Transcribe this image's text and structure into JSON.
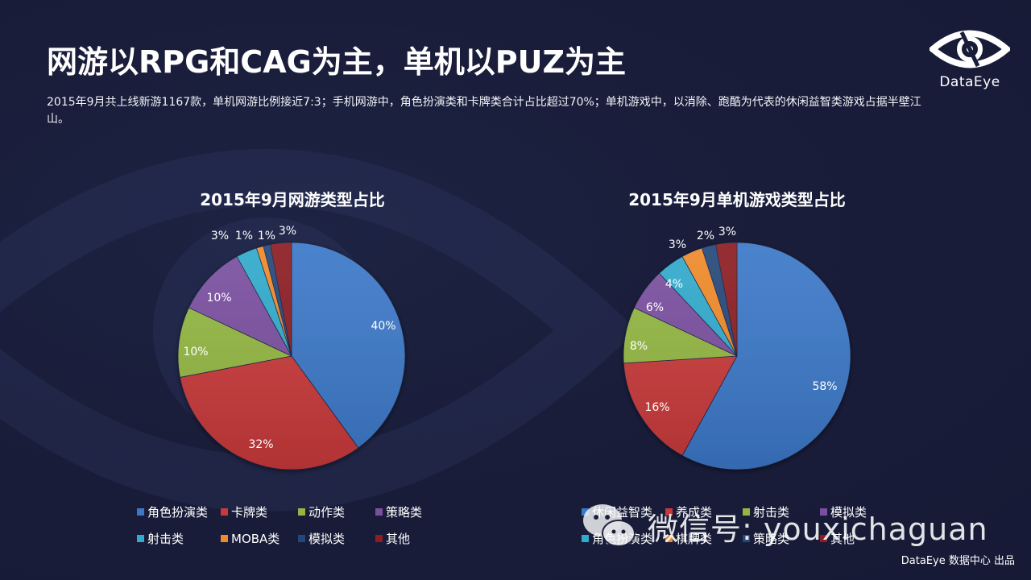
{
  "header": {
    "title": "网游以RPG和CAG为主，单机以PUZ为主",
    "subtitle": "2015年9月共上线新游1167款，单机网游比例接近7:3；手机网游中，角色扮演类和卡牌类合计占比超过70%；单机游戏中，以消除、跑酷为代表的休闲益智类游戏占据半壁江山。"
  },
  "logo": {
    "icon": "eye-logo-icon",
    "text": "DataEye"
  },
  "watermark": {
    "icon": "wechat-icon",
    "text": "微信号: youxichaguan"
  },
  "footer": {
    "text": "DataEye 数据中心 出品"
  },
  "chart_data": [
    {
      "type": "pie",
      "title": "2015年9月网游类型占比",
      "categories": [
        "角色扮演类",
        "卡牌类",
        "动作类",
        "策略类",
        "射击类",
        "MOBA类",
        "模拟类",
        "其他"
      ],
      "values": [
        40,
        32,
        10,
        10,
        3,
        1,
        1,
        3
      ],
      "labels": [
        "40%",
        "32%",
        "10%",
        "10%",
        "3%",
        "1%",
        "1%",
        "3%"
      ],
      "colors": [
        "#3b78c8",
        "#c9393a",
        "#93b742",
        "#7a4fa0",
        "#31aacc",
        "#ef8a2a",
        "#24477a",
        "#8c1d22"
      ],
      "start_angle": "12 o'clock, clockwise",
      "legend_position": "bottom"
    },
    {
      "type": "pie",
      "title": "2015年9月单机游戏类型占比",
      "categories": [
        "休闲益智类",
        "养成类",
        "射击类",
        "模拟类",
        "角色扮演类",
        "棋牌类",
        "策略类",
        "其他"
      ],
      "values": [
        58,
        16,
        8,
        6,
        4,
        3,
        2,
        3
      ],
      "labels": [
        "58%",
        "16%",
        "8%",
        "6%",
        "4%",
        "3%",
        "2%",
        "3%"
      ],
      "colors": [
        "#3b78c8",
        "#c9393a",
        "#93b742",
        "#7a4fa0",
        "#31aacc",
        "#ef8a2a",
        "#24477a",
        "#8c1d22"
      ],
      "start_angle": "12 o'clock, clockwise",
      "legend_position": "bottom"
    }
  ]
}
